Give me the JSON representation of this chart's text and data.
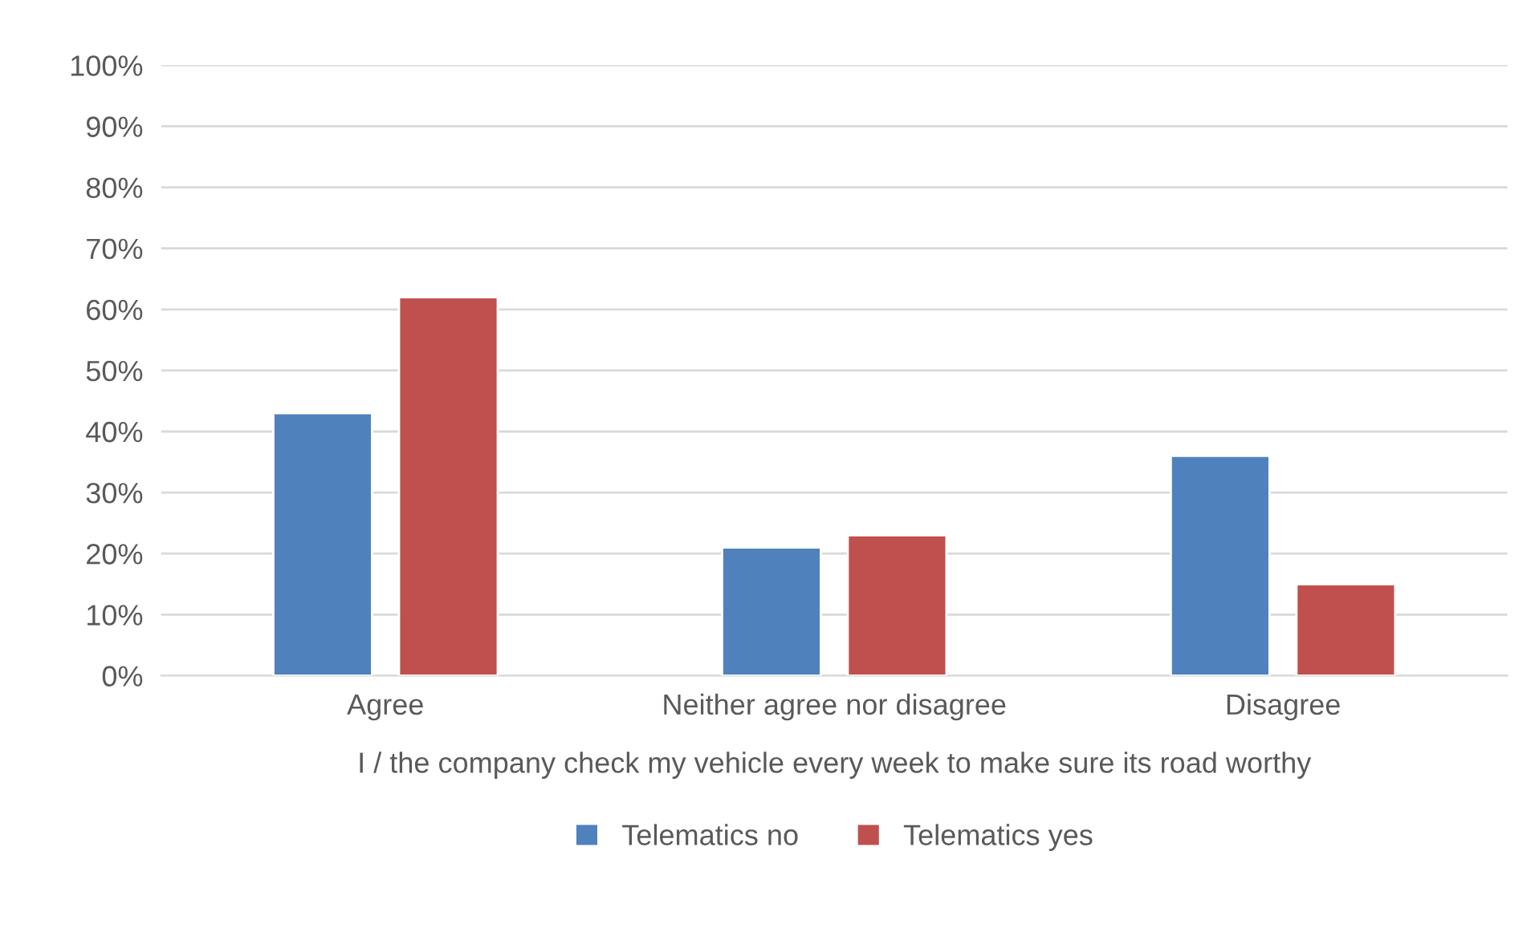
{
  "chart_data": {
    "type": "bar",
    "categories": [
      "Agree",
      "Neither agree nor disagree",
      "Disagree"
    ],
    "xlabel": "I / the company check my vehicle every week to make sure its road worthy",
    "series": [
      {
        "name": "Telematics no",
        "color": "#4f81bd",
        "values": [
          0.43,
          0.21,
          0.36
        ]
      },
      {
        "name": "Telematics yes",
        "color": "#c0504d",
        "values": [
          0.62,
          0.23,
          0.15
        ]
      }
    ],
    "ylim": [
      0,
      1
    ],
    "yticks": [
      {
        "value": 0,
        "label": "0%"
      },
      {
        "value": 0.1,
        "label": "10%"
      },
      {
        "value": 0.2,
        "label": "20%"
      },
      {
        "value": 0.3,
        "label": "30%"
      },
      {
        "value": 0.4,
        "label": "40%"
      },
      {
        "value": 0.5,
        "label": "50%"
      },
      {
        "value": 0.6,
        "label": "60%"
      },
      {
        "value": 0.7,
        "label": "70%"
      },
      {
        "value": 0.8,
        "label": "80%"
      },
      {
        "value": 0.9,
        "label": "90%"
      },
      {
        "value": 1,
        "label": "100%"
      }
    ],
    "grid": "y",
    "legend": "bottom"
  }
}
